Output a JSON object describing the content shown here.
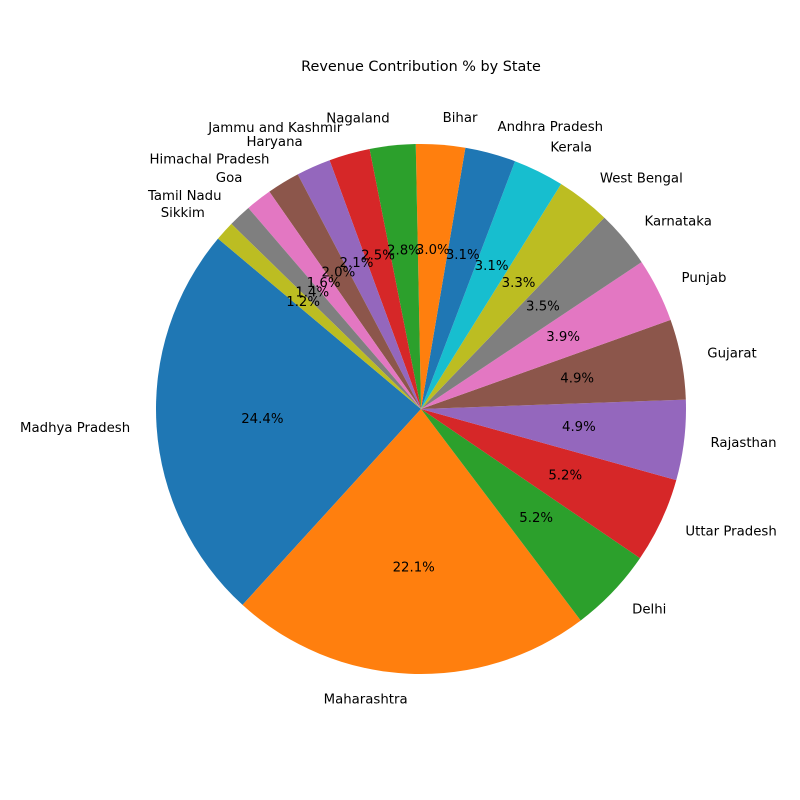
{
  "chart_data": {
    "type": "pie",
    "title": "Revenue Contribution % by State",
    "percent_format": "one decimal place with % sign",
    "start_angle_deg": 140,
    "direction": "counterclockwise",
    "slices": [
      {
        "label": "Madhya Pradesh",
        "value": 24.4,
        "color": "#1f77b4"
      },
      {
        "label": "Maharashtra",
        "value": 22.1,
        "color": "#ff7f0e"
      },
      {
        "label": "Delhi",
        "value": 5.2,
        "color": "#2ca02c"
      },
      {
        "label": "Uttar Pradesh",
        "value": 5.2,
        "color": "#d62728"
      },
      {
        "label": "Rajasthan",
        "value": 4.9,
        "color": "#9467bd"
      },
      {
        "label": "Gujarat",
        "value": 4.9,
        "color": "#8c564b"
      },
      {
        "label": "Punjab",
        "value": 3.9,
        "color": "#e377c2"
      },
      {
        "label": "Karnataka",
        "value": 3.5,
        "color": "#7f7f7f"
      },
      {
        "label": "West Bengal",
        "value": 3.3,
        "color": "#bcbd22"
      },
      {
        "label": "Kerala",
        "value": 3.1,
        "color": "#17becf"
      },
      {
        "label": "Andhra Pradesh",
        "value": 3.1,
        "color": "#1f77b4"
      },
      {
        "label": "Bihar",
        "value": 3.0,
        "color": "#ff7f0e"
      },
      {
        "label": "Nagaland",
        "value": 2.8,
        "color": "#2ca02c"
      },
      {
        "label": "Jammu and Kashmir",
        "value": 2.5,
        "color": "#d62728"
      },
      {
        "label": "Haryana",
        "value": 2.1,
        "color": "#9467bd"
      },
      {
        "label": "Himachal Pradesh",
        "value": 2.0,
        "color": "#8c564b"
      },
      {
        "label": "Goa",
        "value": 1.6,
        "color": "#e377c2"
      },
      {
        "label": "Tamil Nadu",
        "value": 1.4,
        "color": "#7f7f7f"
      },
      {
        "label": "Sikkim",
        "value": 1.2,
        "color": "#bcbd22"
      }
    ]
  }
}
